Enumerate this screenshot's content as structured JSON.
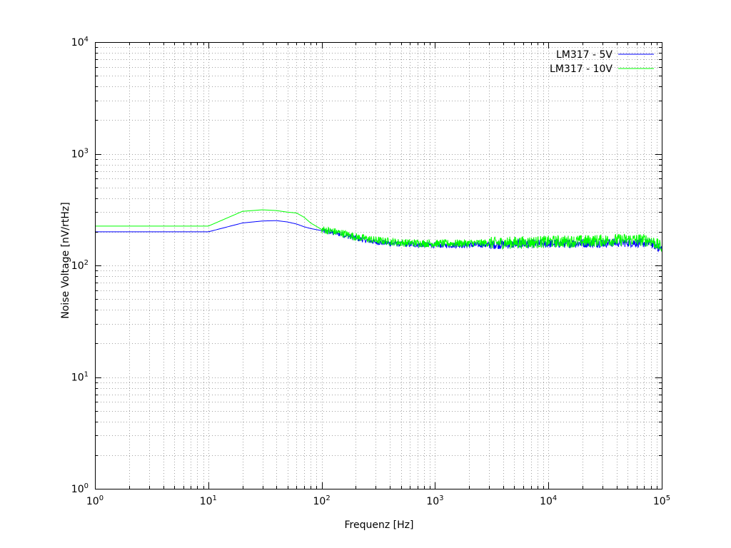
{
  "chart_data": {
    "type": "line",
    "title": "",
    "xlabel": "Frequenz [Hz]",
    "ylabel": "Noise Voltage [nV/rtHz]",
    "xscale": "log",
    "yscale": "log",
    "xlim": [
      1,
      100000
    ],
    "ylim": [
      1,
      10000
    ],
    "grid": true,
    "legend_position": "top-right",
    "x_ticks": [
      {
        "base": "10",
        "exp": "0"
      },
      {
        "base": "10",
        "exp": "1"
      },
      {
        "base": "10",
        "exp": "2"
      },
      {
        "base": "10",
        "exp": "3"
      },
      {
        "base": "10",
        "exp": "4"
      },
      {
        "base": "10",
        "exp": "5"
      }
    ],
    "y_ticks": [
      {
        "base": "10",
        "exp": "0"
      },
      {
        "base": "10",
        "exp": "1"
      },
      {
        "base": "10",
        "exp": "2"
      },
      {
        "base": "10",
        "exp": "3"
      },
      {
        "base": "10",
        "exp": "4"
      }
    ],
    "series": [
      {
        "name": "LM317 - 5V",
        "color": "#0000ff",
        "x": [
          1,
          10,
          20,
          30,
          40,
          50,
          60,
          70,
          80,
          100,
          150,
          200,
          300,
          500,
          1000,
          2000,
          5000,
          10000,
          20000,
          50000,
          80000,
          100000
        ],
        "y": [
          200,
          200,
          240,
          250,
          252,
          245,
          235,
          222,
          214,
          205,
          190,
          175,
          162,
          155,
          152,
          152,
          155,
          157,
          158,
          160,
          158,
          140
        ],
        "noise": 0.05
      },
      {
        "name": "LM317 - 10V",
        "color": "#00ff00",
        "x": [
          1,
          10,
          20,
          30,
          40,
          50,
          60,
          70,
          80,
          100,
          150,
          200,
          300,
          500,
          1000,
          2000,
          5000,
          10000,
          20000,
          50000,
          80000,
          100000
        ],
        "y": [
          225,
          225,
          305,
          315,
          310,
          300,
          295,
          270,
          240,
          210,
          195,
          180,
          168,
          160,
          157,
          158,
          160,
          163,
          165,
          170,
          168,
          145
        ],
        "noise": 0.07
      }
    ]
  }
}
